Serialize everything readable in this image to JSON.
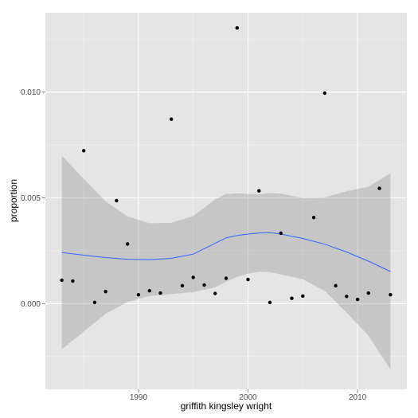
{
  "chart_data": {
    "type": "scatter",
    "xlabel": "griffith kingsley wright",
    "ylabel": "proportion",
    "xlim": [
      1981.5,
      2014.5
    ],
    "ylim": [
      -0.00405,
      0.01375
    ],
    "x_ticks": [
      1990,
      2000,
      2010
    ],
    "y_ticks": [
      0.0,
      0.005,
      0.01
    ],
    "x_tick_labels": [
      "1990",
      "2000",
      "2010"
    ],
    "y_tick_labels": [
      "0.000",
      "0.005",
      "0.010"
    ],
    "grid": true,
    "panel_background": "#e5e5e5",
    "grid_color": "#ffffff",
    "point_color": "#000000",
    "smooth_color": "#3366ff",
    "ribbon_color": "#999999",
    "points": [
      {
        "x": 1983,
        "y": 0.00111
      },
      {
        "x": 1984,
        "y": 0.00107
      },
      {
        "x": 1985,
        "y": 0.00723
      },
      {
        "x": 1986,
        "y": 6e-05
      },
      {
        "x": 1987,
        "y": 0.00057
      },
      {
        "x": 1988,
        "y": 0.00487
      },
      {
        "x": 1989,
        "y": 0.00282
      },
      {
        "x": 1990,
        "y": 0.00042
      },
      {
        "x": 1991,
        "y": 0.00061
      },
      {
        "x": 1992,
        "y": 0.0005
      },
      {
        "x": 1993,
        "y": 0.00872
      },
      {
        "x": 1994,
        "y": 0.00085
      },
      {
        "x": 1995,
        "y": 0.00124
      },
      {
        "x": 1996,
        "y": 0.00088
      },
      {
        "x": 1997,
        "y": 0.00048
      },
      {
        "x": 1998,
        "y": 0.0012
      },
      {
        "x": 1999,
        "y": 0.01303
      },
      {
        "x": 2000,
        "y": 0.00114
      },
      {
        "x": 2001,
        "y": 0.00533
      },
      {
        "x": 2002,
        "y": 6e-05
      },
      {
        "x": 2003,
        "y": 0.00333
      },
      {
        "x": 2004,
        "y": 0.00025
      },
      {
        "x": 2005,
        "y": 0.00036
      },
      {
        "x": 2006,
        "y": 0.00407
      },
      {
        "x": 2007,
        "y": 0.00995
      },
      {
        "x": 2008,
        "y": 0.00085
      },
      {
        "x": 2009,
        "y": 0.00034
      },
      {
        "x": 2010,
        "y": 0.0002
      },
      {
        "x": 2011,
        "y": 0.0005
      },
      {
        "x": 2012,
        "y": 0.00545
      },
      {
        "x": 2013,
        "y": 0.00042
      }
    ],
    "smooth": {
      "x": [
        1983,
        1985,
        1987,
        1989,
        1991,
        1993,
        1995,
        1997,
        1998,
        1999,
        2000,
        2001,
        2002,
        2003,
        2005,
        2007,
        2009,
        2011,
        2013
      ],
      "y": [
        0.00242,
        0.00229,
        0.00218,
        0.0021,
        0.00208,
        0.00214,
        0.00234,
        0.00285,
        0.00311,
        0.00322,
        0.00329,
        0.00334,
        0.00336,
        0.00329,
        0.00308,
        0.00281,
        0.00244,
        0.00201,
        0.00152
      ],
      "ymin": [
        -0.00216,
        -0.00132,
        -0.00048,
        8e-05,
        0.00036,
        0.00046,
        0.00054,
        0.00077,
        0.00104,
        0.00126,
        0.00142,
        0.00151,
        0.00149,
        0.00138,
        0.00116,
        0.0006,
        -0.00043,
        -0.00151,
        -0.00312
      ],
      "ymax": [
        0.007,
        0.0059,
        0.00484,
        0.00412,
        0.0038,
        0.00382,
        0.00414,
        0.00493,
        0.00518,
        0.00522,
        0.00518,
        0.00517,
        0.00523,
        0.0052,
        0.005,
        0.00502,
        0.00531,
        0.00553,
        0.00616
      ]
    }
  }
}
